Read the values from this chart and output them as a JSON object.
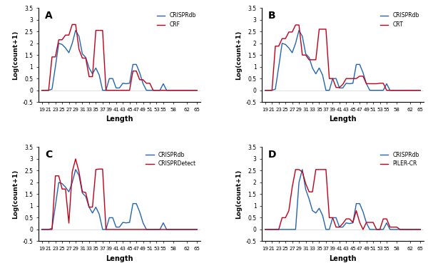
{
  "x_ticks": [
    19,
    21,
    23,
    25,
    27,
    29,
    31,
    33,
    35,
    37,
    39,
    41,
    43,
    45,
    47,
    49,
    51,
    53,
    55,
    58,
    62,
    65
  ],
  "color_blue": "#2565AE",
  "color_red": "#C0001A",
  "ylabel": "Log(count+1)",
  "xlabel": "Length",
  "panel_labels": [
    "A",
    "B",
    "C",
    "D"
  ],
  "crisprdb": [
    0,
    0,
    0,
    0.05,
    1.0,
    2.0,
    1.95,
    1.8,
    1.6,
    2.0,
    2.55,
    2.3,
    1.55,
    1.4,
    0.95,
    0.7,
    0.95,
    0.65,
    0.0,
    0.0,
    0.5,
    0.5,
    0.1,
    0.1,
    0.3,
    0.28,
    0.3,
    1.1,
    1.1,
    0.75,
    0.28,
    0.0,
    0.0,
    0.0,
    0.0,
    0.0,
    0.28,
    0.0,
    0.0,
    0.0,
    0.0,
    0.0,
    0.0,
    0.0,
    0.0,
    0.0,
    0.0
  ],
  "crf": [
    0,
    0,
    0,
    1.42,
    1.42,
    2.15,
    2.15,
    2.35,
    2.35,
    2.8,
    2.8,
    1.75,
    1.37,
    1.37,
    0.58,
    0.58,
    2.55,
    2.55,
    2.55,
    0.0,
    0.0,
    0.0,
    0.0,
    0.0,
    0.0,
    0.0,
    0.0,
    0.82,
    0.82,
    0.45,
    0.45,
    0.3,
    0.3,
    0.0,
    0.0,
    0.0,
    0.0,
    0.0,
    0.0,
    0.0,
    0.0,
    0.0,
    0.0,
    0.0,
    0.0,
    0.0,
    0.0
  ],
  "crt": [
    0,
    0,
    0,
    1.88,
    1.88,
    2.2,
    2.2,
    2.48,
    2.48,
    2.78,
    2.78,
    1.5,
    1.5,
    1.3,
    1.3,
    1.3,
    2.6,
    2.6,
    2.6,
    0.5,
    0.5,
    0.12,
    0.12,
    0.25,
    0.5,
    0.5,
    0.5,
    0.5,
    0.6,
    0.6,
    0.28,
    0.28,
    0.28,
    0.28,
    0.3,
    0.3,
    0.0,
    0.0,
    0.0,
    0.0,
    0.0,
    0.0,
    0.0,
    0.0,
    0.0,
    0.0,
    0.0
  ],
  "crisprdetect": [
    0,
    0,
    0,
    0,
    2.28,
    2.28,
    1.72,
    1.72,
    0.27,
    2.45,
    3.0,
    2.45,
    1.6,
    1.57,
    0.95,
    0.95,
    2.55,
    2.57,
    2.57,
    0.0,
    0.0,
    0.0,
    0.0,
    0.0,
    0.0,
    0.0,
    0.0,
    0.0,
    0.0,
    0.0,
    0.0,
    0.0,
    0.0,
    0.0,
    0.0,
    0.0,
    0.0,
    0.0,
    0.0,
    0.0,
    0.0,
    0.0,
    0.0,
    0.0,
    0.0,
    0.0,
    0.0
  ],
  "piler_cr": [
    0,
    0,
    0,
    0,
    0,
    0.5,
    0.5,
    0.8,
    1.8,
    2.55,
    2.55,
    2.45,
    1.95,
    1.6,
    1.6,
    2.55,
    2.55,
    2.55,
    2.55,
    0.5,
    0.5,
    0.1,
    0.1,
    0.25,
    0.45,
    0.45,
    0.3,
    0.8,
    0.3,
    0.0,
    0.3,
    0.3,
    0.3,
    0.0,
    0.0,
    0.45,
    0.45,
    0.1,
    0.1,
    0.1,
    0.0,
    0.0,
    0.0,
    0.0,
    0.0,
    0.0,
    0.0
  ],
  "crisprdb_D": [
    0,
    0,
    0,
    0,
    0,
    0,
    0,
    0,
    0,
    0,
    2.0,
    2.55,
    1.7,
    1.3,
    0.8,
    0.7,
    0.9,
    0.6,
    0.0,
    0.0,
    0.5,
    0.5,
    0.1,
    0.1,
    0.28,
    0.25,
    0.28,
    1.1,
    1.1,
    0.75,
    0.28,
    0.0,
    0.0,
    0.0,
    0.0,
    0.0,
    0.28,
    0.0,
    0.0,
    0.0,
    0.0,
    0.0,
    0.0,
    0.0,
    0.0,
    0.0,
    0.0
  ],
  "panels": [
    {
      "label": "A",
      "prog_label": "CRF",
      "prog_key": "crf",
      "db_key": "crisprdb"
    },
    {
      "label": "B",
      "prog_label": "CRT",
      "prog_key": "crt",
      "db_key": "crisprdb"
    },
    {
      "label": "C",
      "prog_label": "CRISPRDetect",
      "prog_key": "crisprdetect",
      "db_key": "crisprdb"
    },
    {
      "label": "D",
      "prog_label": "PILER-CR",
      "prog_key": "piler_cr",
      "db_key": "crisprdb_D"
    }
  ]
}
